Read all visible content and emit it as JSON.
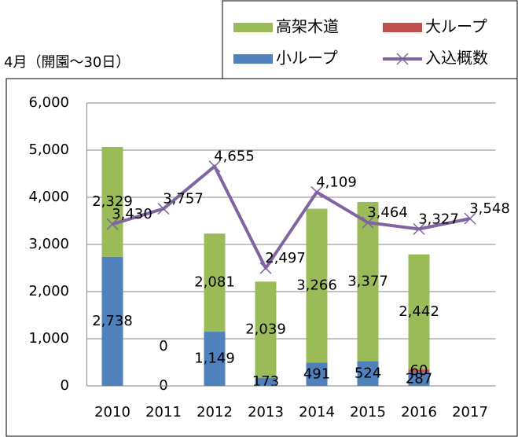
{
  "chart_data": {
    "type": "bar",
    "title": "4月（開園～30日）",
    "categories": [
      "2010",
      "2011",
      "2012",
      "2013",
      "2014",
      "2015",
      "2016",
      "2017"
    ],
    "series": [
      {
        "name": "高架木道",
        "color": "#9bbb59",
        "values": [
          2329,
          0,
          2081,
          2039,
          3266,
          3377,
          2442,
          null
        ],
        "value_labels": [
          "2,329",
          "0",
          "2,081",
          "2,039",
          "3,266",
          "3,377",
          "2,442",
          null
        ]
      },
      {
        "name": "大ループ",
        "color": "#c0504d",
        "values": [
          null,
          null,
          null,
          null,
          null,
          null,
          60,
          null
        ],
        "value_labels": [
          null,
          null,
          null,
          null,
          null,
          null,
          "60",
          null
        ]
      },
      {
        "name": "小ループ",
        "color": "#4f81bd",
        "values": [
          2738,
          0,
          1149,
          173,
          491,
          524,
          287,
          null
        ],
        "value_labels": [
          "2,738",
          "0",
          "1,149",
          "173",
          "491",
          "524",
          "287",
          null
        ]
      },
      {
        "name": "入込概数",
        "type": "line",
        "color": "#8064a2",
        "values": [
          3430,
          3757,
          4655,
          2497,
          4109,
          3464,
          3327,
          3548
        ],
        "value_labels": [
          "3,430",
          "3,757",
          "4,655",
          "2,497",
          "4,109",
          "3,464",
          "3,327",
          "3,548"
        ]
      }
    ],
    "ylim": [
      0,
      6000
    ],
    "yticks": [
      {
        "value": 0,
        "label": "0"
      },
      {
        "value": 1000,
        "label": "1,000"
      },
      {
        "value": 2000,
        "label": "2,000"
      },
      {
        "value": 3000,
        "label": "3,000"
      },
      {
        "value": 4000,
        "label": "4,000"
      },
      {
        "value": 5000,
        "label": "5,000"
      },
      {
        "value": 6000,
        "label": "6,000"
      }
    ],
    "grid": true,
    "legend": "top-right"
  }
}
